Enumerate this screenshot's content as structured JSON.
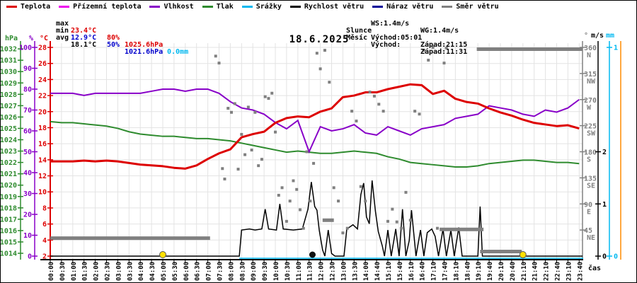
{
  "legend": {
    "items": [
      {
        "label": "Teplota",
        "color": "#dd0000"
      },
      {
        "label": "Přízemní teplota",
        "color": "#ee00ee"
      },
      {
        "label": "Vlhkost",
        "color": "#8800c8"
      },
      {
        "label": "Tlak",
        "color": "#2e8b2e"
      },
      {
        "label": "Srážky",
        "color": "#00b8f0"
      },
      {
        "label": "Rychlost větru",
        "color": "#000000"
      },
      {
        "label": "Náraz větru",
        "color": "#000099"
      },
      {
        "label": "Směr větru",
        "color": "#808080"
      }
    ]
  },
  "stats": {
    "max": {
      "label": "max",
      "temp": "23.4°C",
      "humidity": "80%",
      "pressure": "1025.6hPa",
      "rain": "0.0mm"
    },
    "min": {
      "label": "min",
      "temp": "12.9°C",
      "humidity": "50%",
      "pressure": "1021.6hPa"
    },
    "avg": {
      "label": "avg",
      "temp": "18.1°C"
    }
  },
  "wind_sun": {
    "ws": "WS:1.4m/s",
    "wg": "WG:1.4m/s",
    "sun_label": "Slunce",
    "sun_rise": "Východ:05:01",
    "sun_set": "Západ:21:15",
    "moon_label": "Měsíc",
    "moon_rise": "Východ:",
    "moon_set": "Západ:11:31"
  },
  "chart_data": {
    "type": "line",
    "title": "18.6.2025",
    "grid": true,
    "x_axis": {
      "label": "čas",
      "tick_labels": [
        "00:00",
        "00:30",
        "01:00",
        "01:30",
        "02:00",
        "02:30",
        "03:00",
        "03:30",
        "04:00",
        "04:30",
        "05:00",
        "05:30",
        "06:00",
        "06:30",
        "07:00",
        "07:30",
        "08:00",
        "08:30",
        "09:00",
        "09:30",
        "10:00",
        "10:30",
        "11:00",
        "11:30",
        "12:00",
        "12:30",
        "13:00",
        "13:30",
        "14:00",
        "14:40",
        "15:10",
        "15:40",
        "16:10",
        "16:40",
        "17:10",
        "17:40",
        "18:10",
        "18:40",
        "19:10",
        "19:40",
        "20:10",
        "20:40",
        "21:10",
        "21:40",
        "22:10",
        "22:40",
        "23:10",
        "23:40"
      ]
    },
    "y_axes": {
      "temperature": {
        "unit": "°C",
        "min": 2,
        "max": 28,
        "tick_step": 2,
        "color": "#dd0000"
      },
      "humidity": {
        "unit": "%",
        "min": 0,
        "max": 100,
        "tick_step": 10,
        "color": "#8800c8"
      },
      "pressure": {
        "unit": "hPa",
        "min": 1014,
        "max": 1032,
        "tick_step": 1,
        "color": "#2e8b2e"
      },
      "wind_direction": {
        "unit": "°",
        "color": "#808080",
        "ticks": [
          {
            "value": 360,
            "label": "N"
          },
          {
            "value": 315,
            "label": "NW"
          },
          {
            "value": 270,
            "label": "W"
          },
          {
            "value": 225,
            "label": "SW"
          },
          {
            "value": 180,
            "label": "S"
          },
          {
            "value": 135,
            "label": "SE"
          },
          {
            "value": 90,
            "label": "E"
          },
          {
            "value": 45,
            "label": "NE"
          }
        ]
      },
      "wind_speed": {
        "unit": "m/s",
        "min": 0,
        "max": 4,
        "tick_values": [
          0,
          1,
          2
        ],
        "color": "#000000"
      },
      "precipitation": {
        "unit": "mm",
        "min": 0,
        "max": 1,
        "tick_values": [
          0,
          1
        ],
        "color": "#00b8f0"
      },
      "extra_axis_color": "#ff8c00"
    },
    "series": {
      "temperature": {
        "name": "Teplota",
        "color": "#dd0000",
        "values": [
          13.8,
          13.8,
          13.8,
          13.9,
          13.8,
          13.9,
          13.8,
          13.6,
          13.4,
          13.3,
          13.2,
          13.0,
          12.9,
          13.3,
          14.1,
          14.8,
          15.3,
          16.8,
          17.2,
          17.5,
          18.6,
          19.2,
          19.4,
          19.3,
          20.0,
          20.4,
          21.8,
          22.0,
          22.4,
          22.4,
          22.8,
          23.1,
          23.4,
          23.3,
          22.2,
          22.6,
          21.6,
          21.2,
          21.0,
          20.4,
          19.9,
          19.5,
          19.0,
          18.6,
          18.4,
          18.2,
          18.3,
          17.9
        ]
      },
      "humidity": {
        "name": "Vlhkost",
        "color": "#8800c8",
        "values": [
          78,
          78,
          78,
          77,
          78,
          78,
          78,
          78,
          78,
          79,
          80,
          80,
          79,
          80,
          80,
          78,
          74,
          71,
          70,
          68,
          64,
          61,
          65,
          50,
          62,
          60,
          61,
          63,
          59,
          58,
          62,
          60,
          58,
          61,
          62,
          63,
          66,
          67,
          68,
          72,
          71,
          70,
          68,
          67,
          70,
          69,
          71,
          75
        ]
      },
      "pressure": {
        "name": "Tlak",
        "color": "#2e8b2e",
        "values": [
          1025.6,
          1025.5,
          1025.5,
          1025.4,
          1025.3,
          1025.2,
          1025.0,
          1024.7,
          1024.5,
          1024.4,
          1024.3,
          1024.3,
          1024.2,
          1024.1,
          1024.1,
          1024.0,
          1023.9,
          1023.7,
          1023.5,
          1023.3,
          1023.1,
          1022.9,
          1023.0,
          1022.9,
          1022.8,
          1022.8,
          1022.9,
          1023.0,
          1022.9,
          1022.8,
          1022.5,
          1022.3,
          1022.0,
          1021.9,
          1021.8,
          1021.7,
          1021.6,
          1021.6,
          1021.7,
          1021.9,
          1022.0,
          1022.1,
          1022.2,
          1022.2,
          1022.1,
          1022.0,
          1022.0,
          1021.9
        ]
      },
      "wind_speed": {
        "name": "Rychlost větru",
        "color": "#000000",
        "points": [
          [
            0,
            0
          ],
          [
            16.8,
            0
          ],
          [
            17.0,
            0.5
          ],
          [
            17.7,
            0.52
          ],
          [
            18.2,
            0.5
          ],
          [
            18.8,
            0.52
          ],
          [
            19.1,
            0.9
          ],
          [
            19.4,
            0.52
          ],
          [
            20.1,
            0.5
          ],
          [
            20.4,
            1.0
          ],
          [
            20.7,
            0.52
          ],
          [
            21.6,
            0.5
          ],
          [
            22.4,
            0.52
          ],
          [
            22.9,
            0.9
          ],
          [
            23.2,
            1.42
          ],
          [
            23.5,
            0.95
          ],
          [
            23.7,
            0.88
          ],
          [
            23.9,
            0.5
          ],
          [
            24.2,
            0.12
          ],
          [
            24.4,
            0
          ],
          [
            24.7,
            0.5
          ],
          [
            25.0,
            0.05
          ],
          [
            25.3,
            0
          ],
          [
            26.1,
            0
          ],
          [
            26.35,
            0.52
          ],
          [
            26.9,
            0.6
          ],
          [
            27.3,
            0.52
          ],
          [
            27.6,
            1.18
          ],
          [
            27.85,
            1.4
          ],
          [
            28.1,
            0.75
          ],
          [
            28.35,
            0.62
          ],
          [
            28.6,
            1.45
          ],
          [
            28.9,
            0.85
          ],
          [
            29.15,
            0.47
          ],
          [
            29.5,
            0.2
          ],
          [
            29.7,
            0
          ],
          [
            30.0,
            0.5
          ],
          [
            30.3,
            0
          ],
          [
            30.7,
            0.52
          ],
          [
            31.0,
            0
          ],
          [
            31.3,
            0.9
          ],
          [
            31.6,
            0
          ],
          [
            31.9,
            0.3
          ],
          [
            32.1,
            0.88
          ],
          [
            32.5,
            0
          ],
          [
            32.9,
            0.5
          ],
          [
            33.2,
            0
          ],
          [
            33.5,
            0.45
          ],
          [
            33.9,
            0.52
          ],
          [
            34.2,
            0.38
          ],
          [
            34.5,
            0
          ],
          [
            34.9,
            0.52
          ],
          [
            35.2,
            0
          ],
          [
            35.6,
            0.5
          ],
          [
            35.9,
            0
          ],
          [
            36.3,
            0.55
          ],
          [
            36.6,
            0
          ],
          [
            38.0,
            0
          ],
          [
            38.2,
            0.95
          ],
          [
            38.4,
            0
          ],
          [
            47.3,
            0
          ]
        ]
      },
      "precipitation": {
        "name": "Srážky",
        "color": "#00b8f0",
        "value": 0,
        "from_index": 16.8
      },
      "wind_direction": {
        "name": "Směr větru",
        "color": "#808080",
        "segments": [
          [
            0,
            14.2,
            31
          ],
          [
            24.2,
            25.2,
            62
          ],
          [
            34.6,
            38.5,
            46
          ],
          [
            38.2,
            41.9,
            8
          ],
          [
            37.9,
            47.3,
            357
          ]
        ],
        "points": [
          [
            14.7,
            345
          ],
          [
            15,
            333
          ],
          [
            15.3,
            151
          ],
          [
            15.5,
            133
          ],
          [
            15.8,
            255
          ],
          [
            16.1,
            248
          ],
          [
            16.4,
            263
          ],
          [
            16.7,
            150
          ],
          [
            17,
            210
          ],
          [
            17.3,
            175
          ],
          [
            17.6,
            257
          ],
          [
            17.9,
            183
          ],
          [
            18.2,
            248
          ],
          [
            18.5,
            156
          ],
          [
            18.8,
            167
          ],
          [
            19.1,
            275
          ],
          [
            19.4,
            272
          ],
          [
            19.7,
            281
          ],
          [
            20,
            214
          ],
          [
            20.3,
            105
          ],
          [
            20.6,
            118
          ],
          [
            21,
            60
          ],
          [
            21.3,
            95
          ],
          [
            21.6,
            130
          ],
          [
            21.9,
            115
          ],
          [
            22.2,
            80
          ],
          [
            22.5,
            48
          ],
          [
            22.8,
            180
          ],
          [
            23.1,
            95
          ],
          [
            23.4,
            160
          ],
          [
            23.7,
            350
          ],
          [
            24,
            323
          ],
          [
            24.4,
            355
          ],
          [
            24.8,
            300
          ],
          [
            25.2,
            118
          ],
          [
            25.6,
            95
          ],
          [
            26,
            40
          ],
          [
            26.4,
            48
          ],
          [
            26.8,
            250
          ],
          [
            27.2,
            233
          ],
          [
            27.6,
            120
          ],
          [
            28,
            95
          ],
          [
            28.4,
            283
          ],
          [
            28.8,
            276
          ],
          [
            29.2,
            262
          ],
          [
            29.6,
            250
          ],
          [
            30,
            60
          ],
          [
            30.4,
            81
          ],
          [
            30.8,
            59
          ],
          [
            31.2,
            48
          ],
          [
            31.6,
            110
          ],
          [
            32,
            62
          ],
          [
            32.4,
            250
          ],
          [
            32.8,
            245
          ],
          [
            33.2,
            355
          ],
          [
            33.6,
            338
          ],
          [
            34,
            360
          ],
          [
            34.4,
            48
          ],
          [
            35,
            333
          ],
          [
            35.2,
            359
          ]
        ]
      }
    },
    "markers": {
      "sunrise_index": 10.0,
      "sunset_index": 42.0,
      "moonset_index": 23.3,
      "sun_color": "#ffe000",
      "moon_color": "#111111"
    }
  }
}
